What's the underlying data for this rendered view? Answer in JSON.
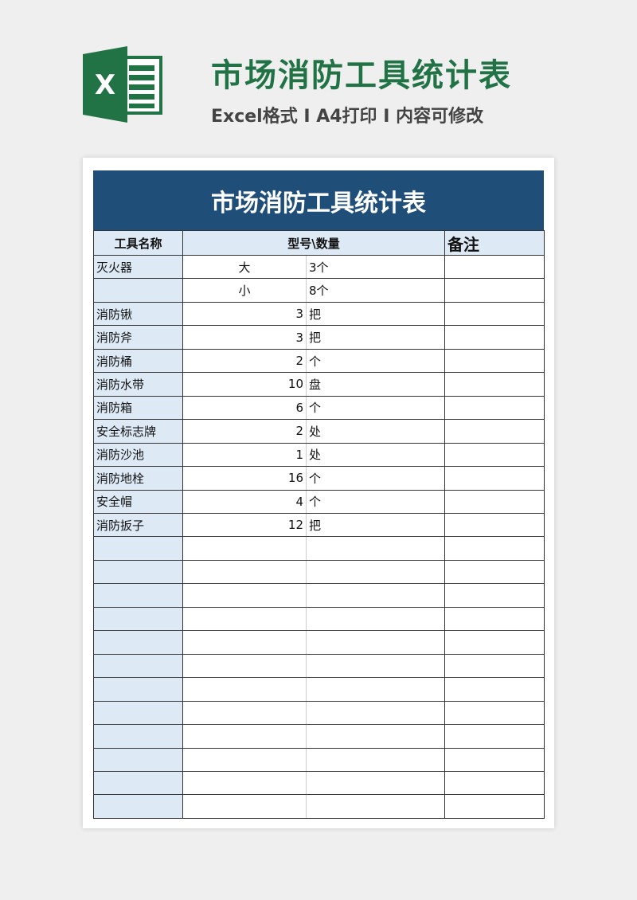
{
  "header": {
    "title": "市场消防工具统计表",
    "subtitle": "Excel格式 I A4打印 I 内容可修改",
    "logo_letter": "X",
    "brand_color": "#217346"
  },
  "sheet": {
    "title": "市场消防工具统计表",
    "columns": {
      "name": "工具名称",
      "model_qty": "型号\\数量",
      "note": "备注"
    },
    "rows": [
      {
        "name": "灭火器",
        "model": "大",
        "qty": "3个"
      },
      {
        "name": "",
        "model": "小",
        "qty": "8个"
      },
      {
        "name": "消防锹",
        "qty": "3",
        "unit": "把"
      },
      {
        "name": "消防斧",
        "qty": "3",
        "unit": "把"
      },
      {
        "name": "消防桶",
        "qty": "2",
        "unit": "个"
      },
      {
        "name": "消防水带",
        "qty": "10",
        "unit": "盘"
      },
      {
        "name": "消防箱",
        "qty": "6",
        "unit": "个"
      },
      {
        "name": "安全标志牌",
        "qty": "2",
        "unit": "处"
      },
      {
        "name": "消防沙池",
        "qty": "1",
        "unit": "处"
      },
      {
        "name": "消防地栓",
        "qty": "16",
        "unit": "个"
      },
      {
        "name": "安全帽",
        "qty": "4",
        "unit": "个"
      },
      {
        "name": "消防扳子",
        "qty": "12",
        "unit": "把"
      }
    ],
    "empty_rows": 12,
    "header_color": "#1f4e79",
    "name_col_color": "#dde9f5"
  }
}
